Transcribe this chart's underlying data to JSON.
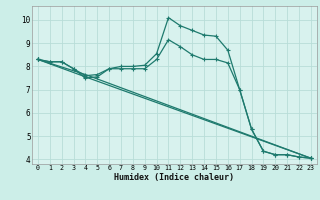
{
  "xlabel": "Humidex (Indice chaleur)",
  "bg_color": "#cceee8",
  "plot_bg_color": "#d8f2ee",
  "grid_color": "#b8ddd8",
  "line_color": "#1e7a6e",
  "xlim": [
    -0.5,
    23.5
  ],
  "ylim": [
    3.8,
    10.6
  ],
  "yticks": [
    4,
    5,
    6,
    7,
    8,
    9,
    10
  ],
  "xticks": [
    0,
    1,
    2,
    3,
    4,
    5,
    6,
    7,
    8,
    9,
    10,
    11,
    12,
    13,
    14,
    15,
    16,
    17,
    18,
    19,
    20,
    21,
    22,
    23
  ],
  "lines": [
    {
      "x": [
        0,
        1,
        2,
        3,
        4,
        5,
        6,
        7,
        8,
        9,
        10,
        11,
        12,
        13,
        14,
        15,
        16,
        17,
        18,
        19,
        20,
        21,
        22,
        23
      ],
      "y": [
        8.3,
        8.2,
        8.2,
        7.9,
        7.5,
        7.55,
        7.9,
        8.0,
        8.0,
        8.05,
        8.55,
        10.1,
        9.75,
        9.55,
        9.35,
        9.3,
        8.7,
        7.0,
        5.3,
        4.35,
        4.2,
        4.2,
        4.1,
        4.05
      ]
    },
    {
      "x": [
        0,
        1,
        2,
        3,
        4,
        5,
        6,
        7,
        8,
        9,
        10,
        11,
        12,
        13,
        14,
        15,
        16,
        17,
        18,
        19,
        20,
        21,
        22,
        23
      ],
      "y": [
        8.3,
        8.2,
        8.2,
        7.9,
        7.6,
        7.65,
        7.9,
        7.9,
        7.9,
        7.9,
        8.3,
        9.15,
        8.85,
        8.5,
        8.3,
        8.3,
        8.15,
        7.0,
        5.3,
        4.35,
        4.2,
        4.2,
        4.1,
        4.05
      ]
    },
    {
      "x": [
        0,
        4,
        23
      ],
      "y": [
        8.3,
        7.55,
        4.05
      ]
    },
    {
      "x": [
        0,
        4,
        23
      ],
      "y": [
        8.3,
        7.65,
        4.05
      ]
    }
  ],
  "marker": "+",
  "markersize": 3,
  "markeredgewidth": 0.8,
  "linewidth": 0.9
}
